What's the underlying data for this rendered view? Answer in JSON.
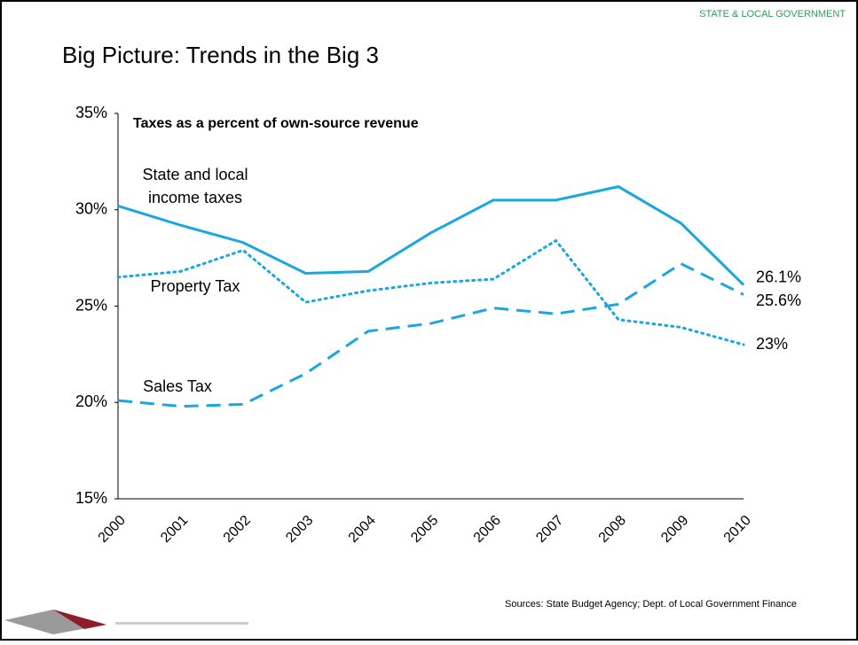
{
  "header": "STATE & LOCAL GOVERNMENT",
  "title": "Big Picture: Trends in the Big 3",
  "source": "Sources: State Budget Agency; Dept. of Local Government Finance",
  "chart_data": {
    "type": "line",
    "subtitle": "Taxes as a percent of own-source revenue",
    "categories": [
      "2000",
      "2001",
      "2002",
      "2003",
      "2004",
      "2005",
      "2006",
      "2007",
      "2008",
      "2009",
      "2010"
    ],
    "ylim": [
      15,
      35
    ],
    "yticks": [
      {
        "value": 15,
        "label": "15%"
      },
      {
        "value": 20,
        "label": "20%"
      },
      {
        "value": 25,
        "label": "25%"
      },
      {
        "value": 30,
        "label": "30%"
      },
      {
        "value": 35,
        "label": "35%"
      }
    ],
    "series": [
      {
        "name": "State and local income taxes",
        "color": "#1aa7e0",
        "style": "solid",
        "values": [
          30.2,
          29.2,
          28.3,
          26.7,
          26.8,
          28.8,
          30.5,
          30.5,
          31.2,
          29.3,
          26.1
        ],
        "value_labels": [
          null,
          null,
          null,
          null,
          null,
          null,
          null,
          null,
          null,
          null,
          "26.1%"
        ]
      },
      {
        "name": "Property Tax",
        "color": "#1aa7e0",
        "style": "dotted",
        "values": [
          26.5,
          26.8,
          27.9,
          25.2,
          25.8,
          26.2,
          26.4,
          28.4,
          24.3,
          23.9,
          23
        ],
        "value_labels": [
          null,
          null,
          null,
          null,
          null,
          null,
          null,
          null,
          null,
          null,
          "23%"
        ]
      },
      {
        "name": "Sales Tax",
        "color": "#1aa7e0",
        "style": "dashed",
        "values": [
          20.1,
          19.8,
          19.9,
          21.5,
          23.7,
          24.1,
          24.9,
          24.6,
          25.1,
          27.2,
          25.6
        ],
        "value_labels": [
          null,
          null,
          null,
          null,
          null,
          null,
          null,
          null,
          null,
          null,
          "25.6%"
        ]
      }
    ]
  }
}
